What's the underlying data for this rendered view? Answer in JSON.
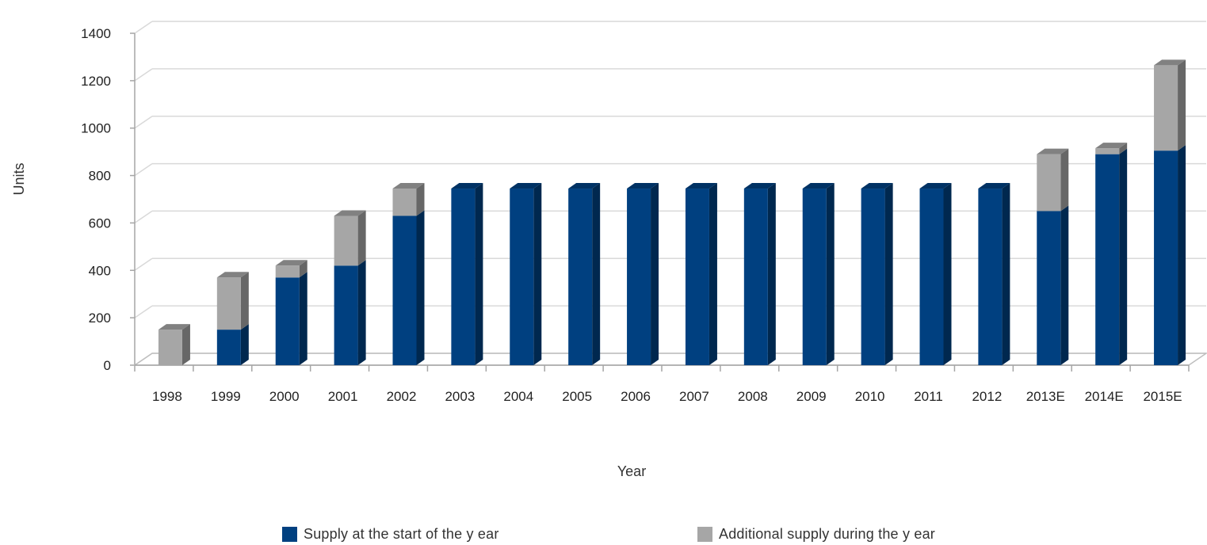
{
  "chart_data": {
    "type": "bar",
    "stacked": true,
    "three_d": true,
    "title": "",
    "xlabel": "Year",
    "ylabel": "Units",
    "ylim": [
      0,
      1400
    ],
    "yticks": [
      0,
      200,
      400,
      600,
      800,
      1000,
      1200,
      1400
    ],
    "grid": true,
    "legend_position": "bottom",
    "categories": [
      "1998",
      "1999",
      "2000",
      "2001",
      "2002",
      "2003",
      "2004",
      "2005",
      "2006",
      "2007",
      "2008",
      "2009",
      "2010",
      "2011",
      "2012",
      "2013E",
      "2014E",
      "2015E"
    ],
    "series": [
      {
        "name": "Supply  at the start of the y ear",
        "color": "#004080",
        "values": [
          0,
          150,
          370,
          420,
          630,
          745,
          745,
          745,
          745,
          745,
          745,
          745,
          745,
          745,
          745,
          650,
          890,
          905
        ]
      },
      {
        "name": "Additional supply  during the y ear",
        "color": "#a6a6a6",
        "values": [
          150,
          220,
          50,
          210,
          115,
          0,
          0,
          0,
          0,
          0,
          0,
          0,
          0,
          0,
          0,
          240,
          25,
          360
        ]
      }
    ]
  }
}
